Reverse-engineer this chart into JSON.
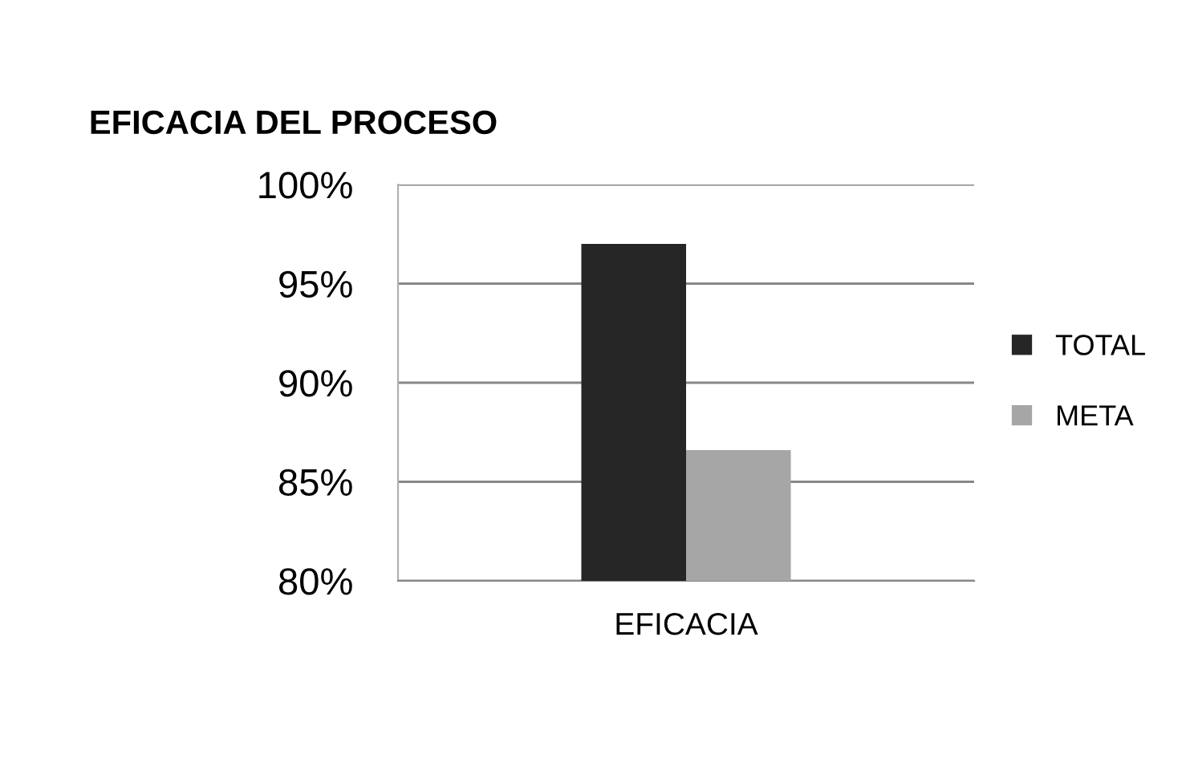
{
  "chart_data": {
    "type": "bar",
    "title": "EFICACIA DEL PROCESO",
    "categories": [
      "EFICACIA"
    ],
    "series": [
      {
        "name": "TOTAL",
        "color": "#262626",
        "values": [
          97
        ]
      },
      {
        "name": "META",
        "color": "#a6a6a6",
        "values": [
          86.6
        ]
      }
    ],
    "ylim": [
      80,
      100
    ],
    "yticks": [
      {
        "value": 80,
        "label": "80%"
      },
      {
        "value": 85,
        "label": "85%"
      },
      {
        "value": 90,
        "label": "90%"
      },
      {
        "value": 95,
        "label": "95%"
      },
      {
        "value": 100,
        "label": "100%"
      }
    ],
    "grid": "y",
    "legend": "right"
  }
}
